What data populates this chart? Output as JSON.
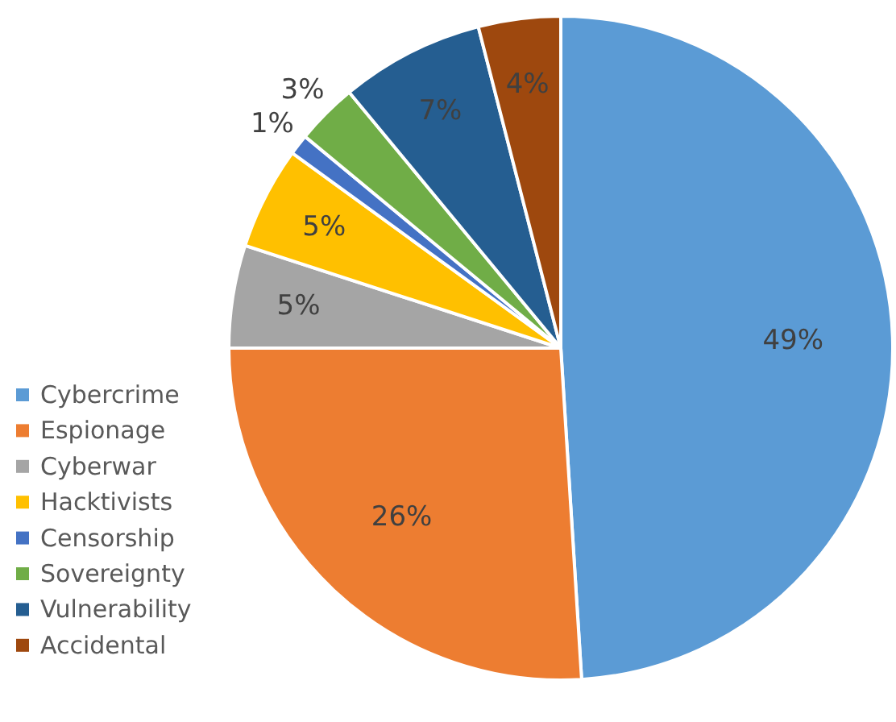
{
  "chart_data": {
    "type": "pie",
    "categories": [
      "Cybercrime",
      "Espionage",
      "Cyberwar",
      "Hacktivists",
      "Censorship",
      "Sovereignty",
      "Vulnerability",
      "Accidental"
    ],
    "values": [
      49,
      26,
      5,
      5,
      1,
      3,
      7,
      4
    ],
    "colors": [
      "#5b9bd5",
      "#ed7d31",
      "#a5a5a5",
      "#ffc000",
      "#4472c4",
      "#70ad47",
      "#255e91",
      "#9e480e"
    ],
    "value_labels": [
      "49%",
      "26%",
      "5%",
      "5%",
      "1%",
      "3%",
      "7%",
      "4%"
    ],
    "legend": "left"
  }
}
